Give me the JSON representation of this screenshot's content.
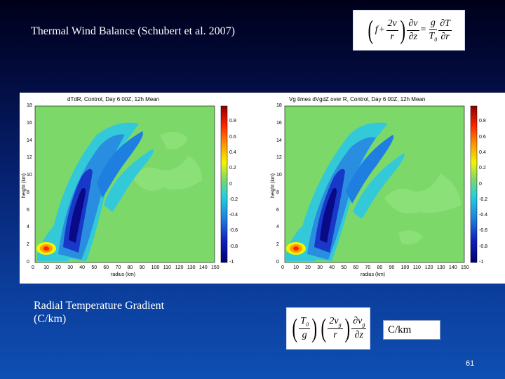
{
  "slide": {
    "title": "Thermal Wind Balance (Schubert et al. 2007)",
    "caption_line1": "Radial Temperature Gradient",
    "caption_line2": "(C/km)",
    "unit_box": "C/km",
    "page_number": "61",
    "equation_top": "(f + 2v/r) ∂v/∂z = g/T0 ∂T/∂r",
    "equation_bottom": "(T0/g)(2vg/r) ∂vg/∂z"
  },
  "panels": [
    {
      "title": "dTdR, Control, Day 6 00Z, 12h Mean",
      "xlabel": "radius (km)",
      "ylabel": "height (km)"
    },
    {
      "title": "Vg times dVgdZ over R, Control, Day 6 00Z, 12h Mean",
      "xlabel": "radius (km)",
      "ylabel": "height (km)"
    }
  ],
  "chart_data": [
    {
      "type": "heatmap",
      "title": "dTdR, Control, Day 6 00Z, 12h Mean",
      "xlabel": "radius (km)",
      "ylabel": "height (km)",
      "xlim": [
        0,
        150
      ],
      "ylim": [
        0,
        18
      ],
      "x_ticks": [
        "0",
        "10",
        "20",
        "30",
        "40",
        "50",
        "60",
        "70",
        "80",
        "90",
        "100",
        "110",
        "120",
        "130",
        "140",
        "150"
      ],
      "y_ticks": [
        "0",
        "2",
        "4",
        "6",
        "8",
        "10",
        "12",
        "14",
        "16",
        "18"
      ],
      "colorbar_ticks": [
        "0.8",
        "0.6",
        "0.4",
        "0.2",
        "0",
        "-0.2",
        "-0.4",
        "-0.6",
        "-0.8",
        "-1"
      ],
      "colorbar_range": [
        -1,
        1
      ]
    },
    {
      "type": "heatmap",
      "title": "Vg times dVgdZ over R, Control, Day 6 00Z, 12h Mean",
      "xlabel": "radius (km)",
      "ylabel": "height (km)",
      "xlim": [
        0,
        150
      ],
      "ylim": [
        0,
        18
      ],
      "x_ticks": [
        "0",
        "10",
        "20",
        "30",
        "40",
        "50",
        "60",
        "70",
        "80",
        "90",
        "100",
        "110",
        "120",
        "130",
        "140",
        "150"
      ],
      "y_ticks": [
        "0",
        "2",
        "4",
        "6",
        "8",
        "10",
        "12",
        "14",
        "16",
        "18"
      ],
      "colorbar_ticks": [
        "0.8",
        "0.6",
        "0.4",
        "0.2",
        "0",
        "-0.2",
        "-0.4",
        "-0.6",
        "-0.8",
        "-1"
      ],
      "colorbar_range": [
        -1,
        1
      ]
    }
  ],
  "colors": {
    "background_top": "#00001a",
    "background_bottom": "#0f4fb3",
    "field_neutral": "#7dd86a"
  }
}
